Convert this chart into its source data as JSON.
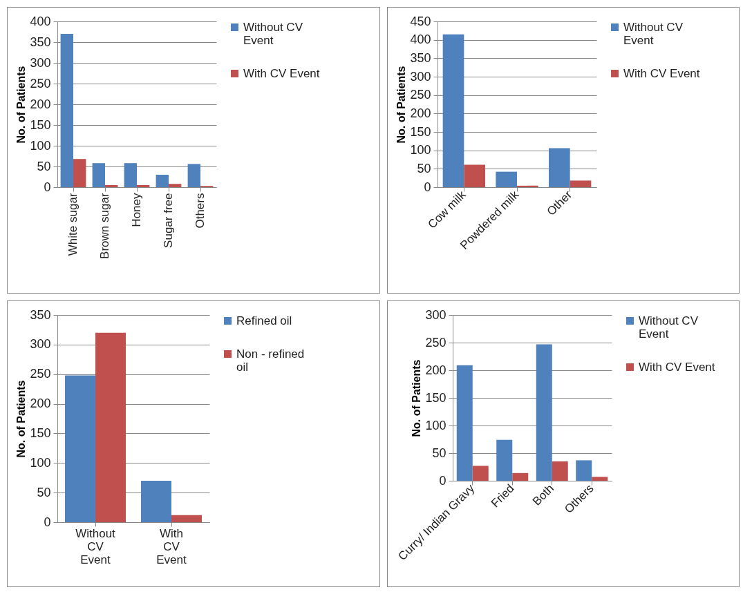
{
  "chart_data": [
    {
      "type": "bar",
      "ylabel": "No. of Patients",
      "categories": [
        "White sugar",
        "Brown sugar",
        "Honey",
        "Sugar free",
        "Others"
      ],
      "ylim": [
        0,
        400
      ],
      "yticks": [
        0,
        50,
        100,
        150,
        200,
        250,
        300,
        350,
        400
      ],
      "grid": "y",
      "legend": "right",
      "series": [
        {
          "name": "Without CV Event",
          "color": "#4f81bd",
          "values": [
            370,
            58,
            58,
            30,
            56
          ]
        },
        {
          "name": "With CV Event",
          "color": "#c0504d",
          "values": [
            68,
            5,
            5,
            8,
            3
          ]
        }
      ]
    },
    {
      "type": "bar",
      "ylabel": "No. of Patients",
      "categories": [
        "Cow milk",
        "Powdered milk",
        "Other"
      ],
      "ylim": [
        0,
        450
      ],
      "yticks": [
        0,
        50,
        100,
        150,
        200,
        250,
        300,
        350,
        400,
        450
      ],
      "grid": "y",
      "legend": "right",
      "series": [
        {
          "name": "Without CV Event",
          "color": "#4f81bd",
          "values": [
            415,
            42,
            106
          ]
        },
        {
          "name": "With CV Event",
          "color": "#c0504d",
          "values": [
            61,
            4,
            18
          ]
        }
      ]
    },
    {
      "type": "bar",
      "ylabel": "No. of Patients",
      "categories": [
        "Without CV Event",
        "With CV Event"
      ],
      "ylim": [
        0,
        350
      ],
      "yticks": [
        0,
        50,
        100,
        150,
        200,
        250,
        300,
        350
      ],
      "grid": "y",
      "legend": "right",
      "series": [
        {
          "name": "Refined oil",
          "color": "#4f81bd",
          "values": [
            248,
            70
          ]
        },
        {
          "name": "Non  - refined oil",
          "color": "#c0504d",
          "values": [
            320,
            12
          ]
        }
      ]
    },
    {
      "type": "bar",
      "ylabel": "No. of Patients",
      "categories": [
        "Curry/ Indian Gravy",
        "Fried",
        "Both",
        "Others"
      ],
      "ylim": [
        0,
        300
      ],
      "yticks": [
        0,
        50,
        100,
        150,
        200,
        250,
        300
      ],
      "grid": "y",
      "legend": "right",
      "series": [
        {
          "name": "Without CV Event",
          "color": "#4f81bd",
          "values": [
            209,
            74,
            247,
            37
          ]
        },
        {
          "name": "With CV Event",
          "color": "#c0504d",
          "values": [
            27,
            14,
            35,
            7
          ]
        }
      ]
    }
  ]
}
